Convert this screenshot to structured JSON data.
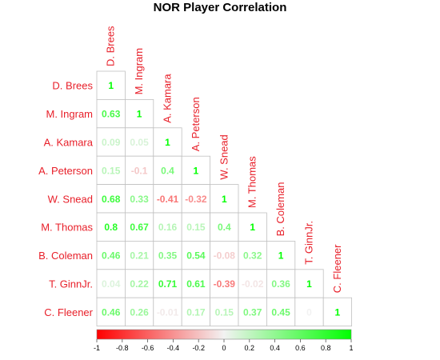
{
  "chart_data": {
    "type": "heatmap",
    "title": "NOR Player Correlation",
    "layout": "lower-triangle",
    "players": [
      "D. Brees",
      "M. Ingram",
      "A. Kamara",
      "A. Peterson",
      "W. Snead",
      "M. Thomas",
      "B. Coleman",
      "T. GinnJr.",
      "C. Fleener"
    ],
    "cell_labels": [
      [
        "1"
      ],
      [
        "0.63",
        "1"
      ],
      [
        "0.09",
        "0.05",
        "1"
      ],
      [
        "0.15",
        "-0.1",
        "0.4",
        "1"
      ],
      [
        "0.68",
        "0.33",
        "-0.41",
        "-0.32",
        "1"
      ],
      [
        "0.8",
        "0.67",
        "0.16",
        "0.15",
        "0.4",
        "1"
      ],
      [
        "0.46",
        "0.21",
        "0.35",
        "0.54",
        "-0.08",
        "0.32",
        "1"
      ],
      [
        "0.04",
        "0.22",
        "0.71",
        "0.61",
        "-0.39",
        "-0.02",
        "0.36",
        "1"
      ],
      [
        "0.46",
        "0.26",
        "-0.01",
        "0.17",
        "0.15",
        "0.37",
        "0.45",
        "0",
        "1"
      ]
    ],
    "colorbar": {
      "min": -1,
      "max": 1,
      "ticks": [
        "-1",
        "-0.8",
        "-0.6",
        "-0.4",
        "-0.2",
        "0",
        "0.2",
        "0.4",
        "0.6",
        "0.8",
        "1"
      ],
      "low_color": "#ff0000",
      "mid_color": "#f2f2f2",
      "high_color": "#00ff00"
    },
    "label_color": "#e8202a",
    "cell_border_color": "#c0c0c0"
  }
}
